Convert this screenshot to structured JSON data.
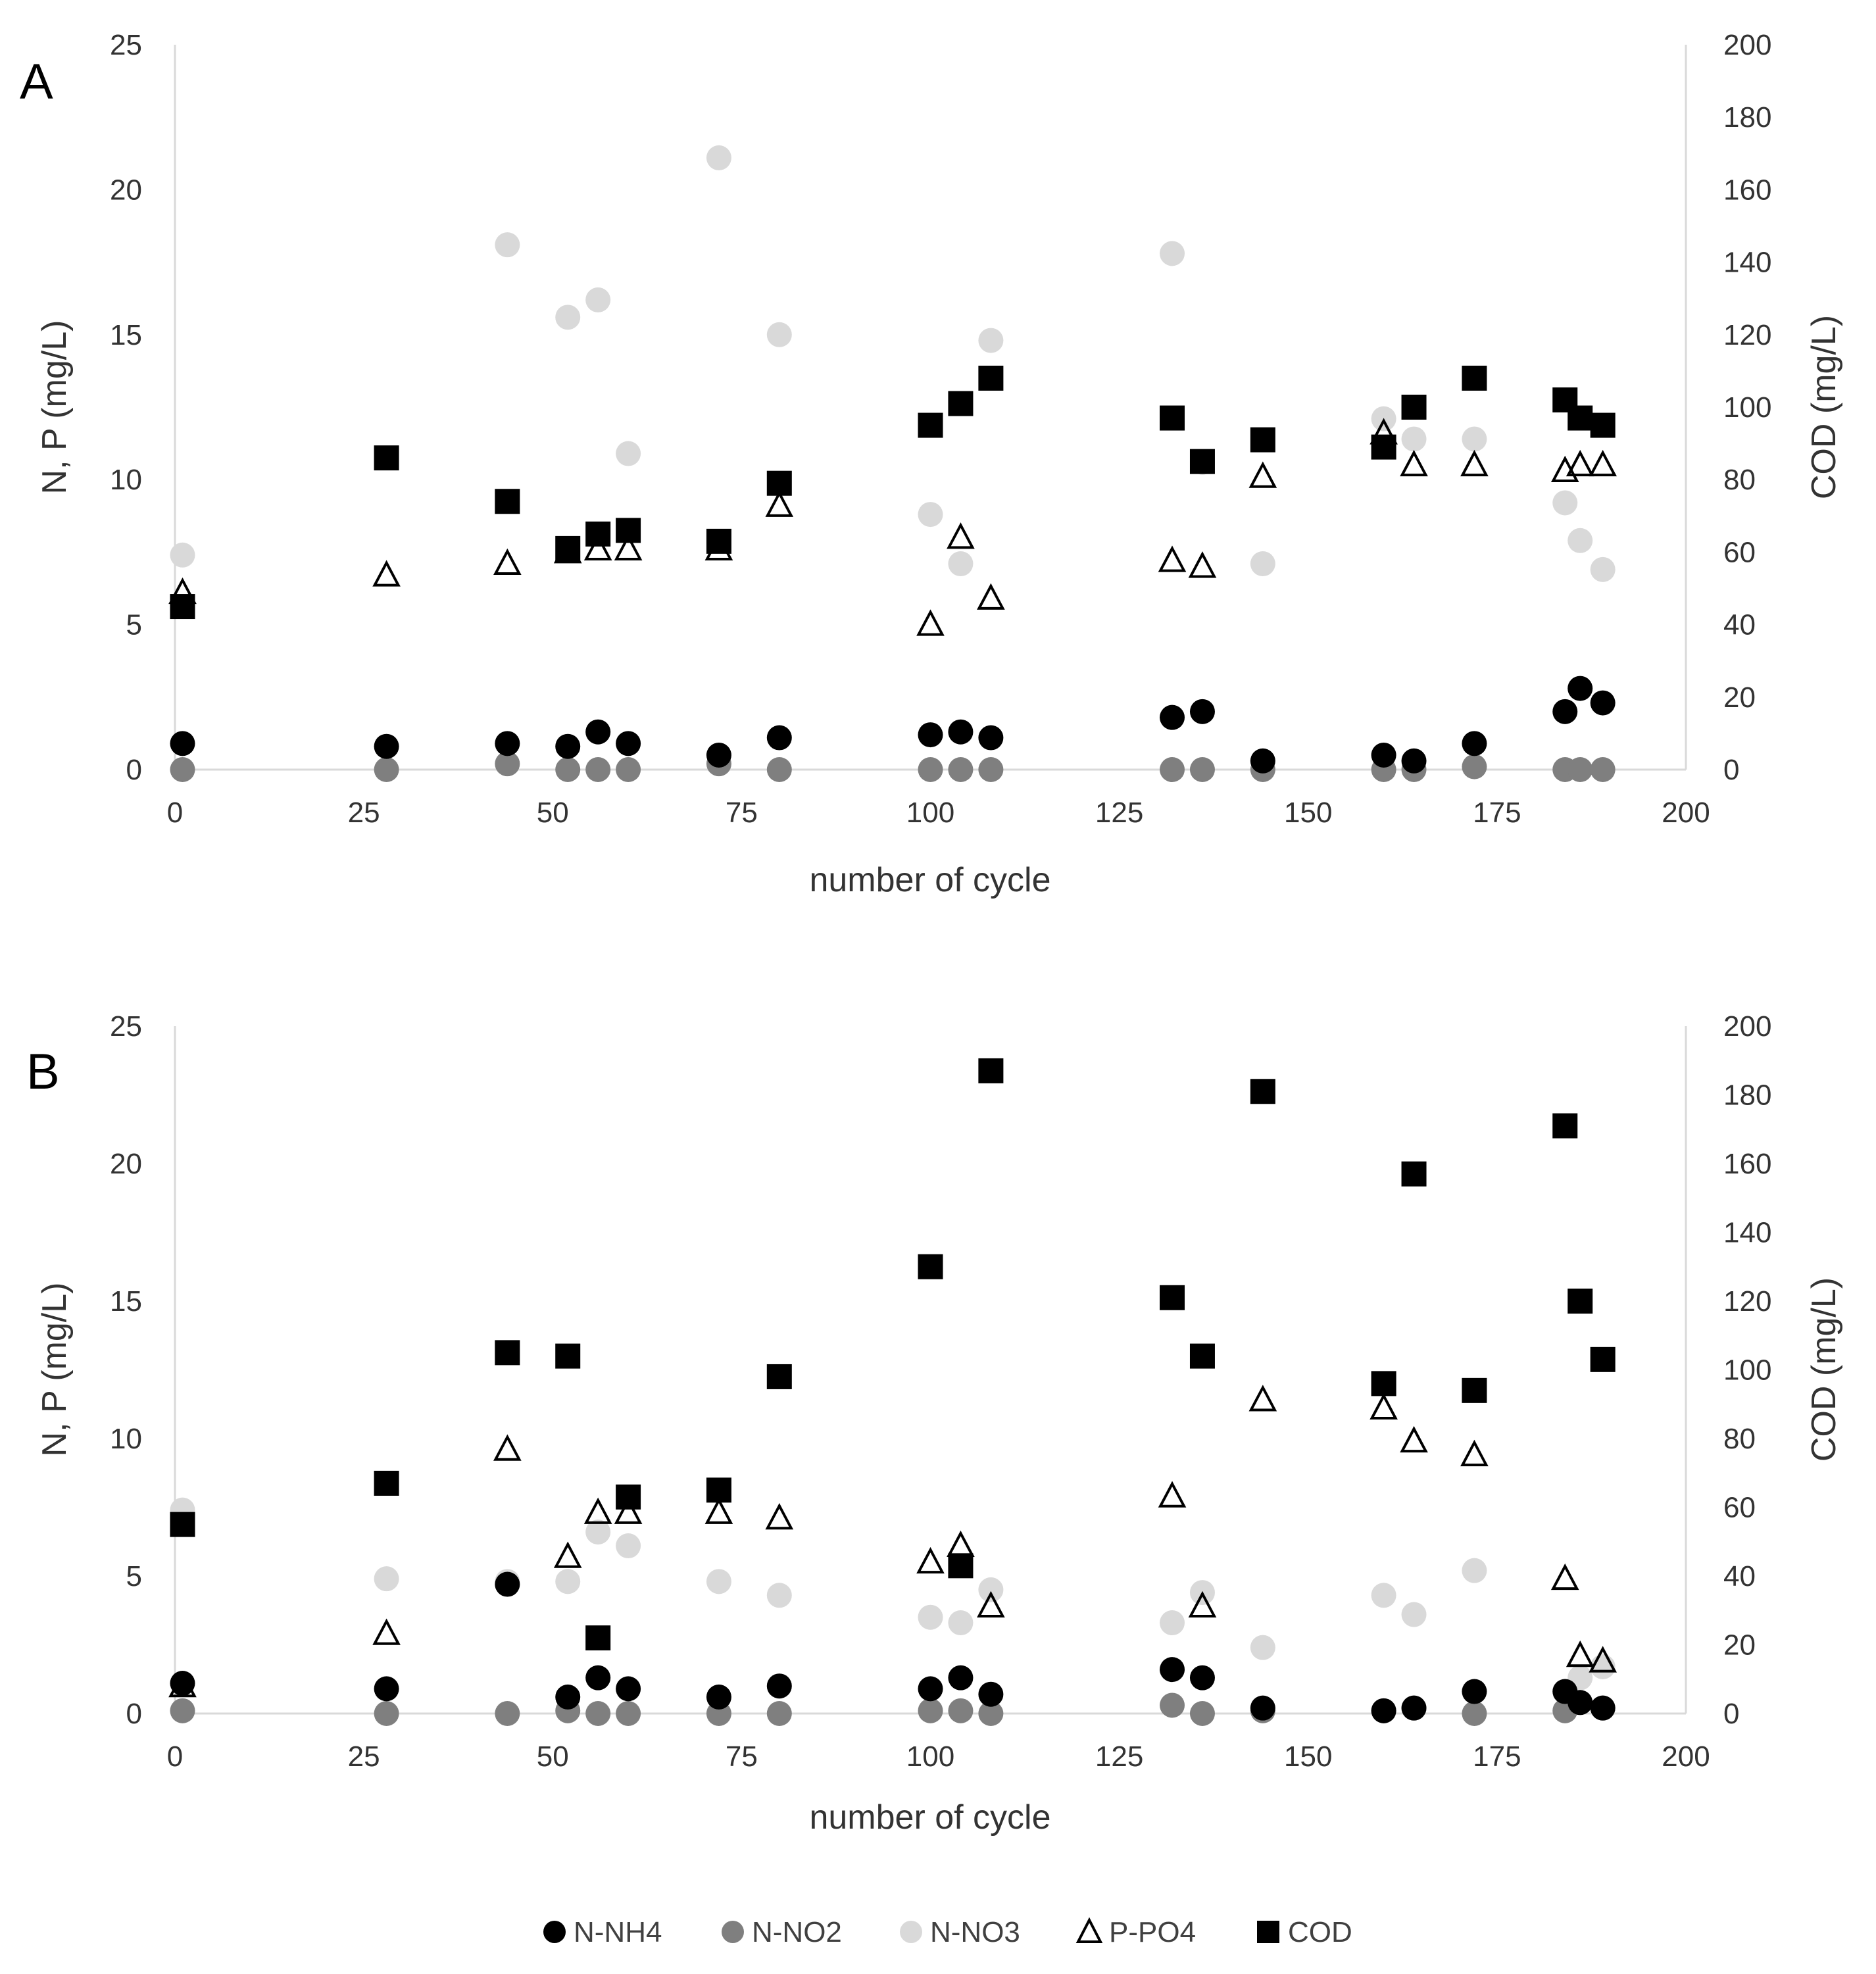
{
  "colors": {
    "N-NH4": "#000000",
    "N-NO2": "#7f7f7f",
    "N-NO3": "#d9d9d9",
    "P-PO4": "#000000",
    "COD": "#000000",
    "axis": "#d9d9d9"
  },
  "legend": {
    "placement": "bottom-center",
    "items": [
      {
        "label": "N-NH4",
        "marker": "circle"
      },
      {
        "label": "N-NO2",
        "marker": "circle"
      },
      {
        "label": "N-NO3",
        "marker": "circle"
      },
      {
        "label": "P-PO4",
        "marker": "open-triangle"
      },
      {
        "label": "COD",
        "marker": "square"
      }
    ]
  },
  "chart_data": [
    {
      "type": "scatter",
      "panel_label": "A",
      "xlabel": "number of cycle",
      "ylabel": "N, P (mg/L)",
      "y2label": "COD (mg/L)",
      "xlim": [
        0,
        200
      ],
      "ylim": [
        0,
        25
      ],
      "y2lim": [
        0,
        200
      ],
      "xticks": [
        0,
        25,
        50,
        75,
        100,
        125,
        150,
        175,
        200
      ],
      "yticks": [
        0,
        5,
        10,
        15,
        20,
        25
      ],
      "y2ticks": [
        0,
        20,
        40,
        60,
        80,
        100,
        120,
        140,
        160,
        180,
        200
      ],
      "grid": false,
      "series": [
        {
          "name": "N-NO3",
          "axis": "left",
          "marker": "circle",
          "points": [
            [
              1,
              7.4
            ],
            [
              44,
              18.1
            ],
            [
              52,
              15.6
            ],
            [
              56,
              16.2
            ],
            [
              60,
              10.9
            ],
            [
              72,
              21.1
            ],
            [
              80,
              15.0
            ],
            [
              100,
              8.8
            ],
            [
              104,
              7.1
            ],
            [
              108,
              14.8
            ],
            [
              132,
              17.8
            ],
            [
              136,
              10.6
            ],
            [
              144,
              7.1
            ],
            [
              160,
              12.1
            ],
            [
              164,
              11.4
            ],
            [
              172,
              11.4
            ],
            [
              184,
              9.2
            ],
            [
              186,
              7.9
            ],
            [
              189,
              6.9
            ]
          ]
        },
        {
          "name": "N-NO2",
          "axis": "left",
          "marker": "circle",
          "points": [
            [
              1,
              0
            ],
            [
              28,
              0
            ],
            [
              44,
              0.2
            ],
            [
              52,
              0
            ],
            [
              56,
              0
            ],
            [
              60,
              0
            ],
            [
              72,
              0.2
            ],
            [
              80,
              0
            ],
            [
              100,
              0
            ],
            [
              104,
              0
            ],
            [
              108,
              0
            ],
            [
              132,
              0
            ],
            [
              136,
              0
            ],
            [
              144,
              0
            ],
            [
              160,
              0
            ],
            [
              164,
              0
            ],
            [
              172,
              0.1
            ],
            [
              184,
              0
            ],
            [
              186,
              0
            ],
            [
              189,
              0
            ]
          ]
        },
        {
          "name": "N-NH4",
          "axis": "left",
          "marker": "circle",
          "points": [
            [
              1,
              0.9
            ],
            [
              28,
              0.8
            ],
            [
              44,
              0.9
            ],
            [
              52,
              0.8
            ],
            [
              56,
              1.3
            ],
            [
              60,
              0.9
            ],
            [
              72,
              0.5
            ],
            [
              80,
              1.1
            ],
            [
              100,
              1.2
            ],
            [
              104,
              1.3
            ],
            [
              108,
              1.1
            ],
            [
              132,
              1.8
            ],
            [
              136,
              2.0
            ],
            [
              144,
              0.3
            ],
            [
              160,
              0.5
            ],
            [
              164,
              0.3
            ],
            [
              172,
              0.9
            ],
            [
              184,
              2.0
            ],
            [
              186,
              2.8
            ],
            [
              189,
              2.3
            ]
          ]
        },
        {
          "name": "P-PO4",
          "axis": "left",
          "marker": "open-triangle",
          "points": [
            [
              1,
              6.1
            ],
            [
              28,
              6.7
            ],
            [
              44,
              7.1
            ],
            [
              52,
              7.5
            ],
            [
              56,
              7.6
            ],
            [
              60,
              7.6
            ],
            [
              72,
              7.6
            ],
            [
              80,
              9.1
            ],
            [
              100,
              5.0
            ],
            [
              104,
              8.0
            ],
            [
              108,
              5.9
            ],
            [
              132,
              7.2
            ],
            [
              136,
              7.0
            ],
            [
              144,
              10.1
            ],
            [
              160,
              11.6
            ],
            [
              164,
              10.5
            ],
            [
              172,
              10.5
            ],
            [
              184,
              10.3
            ],
            [
              186,
              10.5
            ],
            [
              189,
              10.5
            ]
          ]
        },
        {
          "name": "COD",
          "axis": "right",
          "marker": "square",
          "points": [
            [
              1,
              45
            ],
            [
              28,
              86
            ],
            [
              44,
              74
            ],
            [
              52,
              61
            ],
            [
              56,
              65
            ],
            [
              60,
              66
            ],
            [
              72,
              63
            ],
            [
              80,
              79
            ],
            [
              100,
              95
            ],
            [
              104,
              101
            ],
            [
              108,
              108
            ],
            [
              132,
              97
            ],
            [
              136,
              85
            ],
            [
              144,
              91
            ],
            [
              160,
              89
            ],
            [
              164,
              100
            ],
            [
              172,
              108
            ],
            [
              184,
              102
            ],
            [
              186,
              97
            ],
            [
              189,
              95
            ]
          ]
        }
      ]
    },
    {
      "type": "scatter",
      "panel_label": "B",
      "xlabel": "number of cycle",
      "ylabel": "N, P (mg/L)",
      "y2label": "COD (mg/L)",
      "xlim": [
        0,
        200
      ],
      "ylim": [
        0,
        25
      ],
      "y2lim": [
        0,
        200
      ],
      "xticks": [
        0,
        25,
        50,
        75,
        100,
        125,
        150,
        175,
        200
      ],
      "yticks": [
        0,
        5,
        10,
        15,
        20,
        25
      ],
      "y2ticks": [
        0,
        20,
        40,
        60,
        80,
        100,
        120,
        140,
        160,
        180,
        200
      ],
      "grid": false,
      "series": [
        {
          "name": "N-NO3",
          "axis": "left",
          "marker": "circle",
          "points": [
            [
              1,
              7.4
            ],
            [
              28,
              4.9
            ],
            [
              44,
              4.8
            ],
            [
              52,
              4.8
            ],
            [
              56,
              6.6
            ],
            [
              60,
              6.1
            ],
            [
              72,
              4.8
            ],
            [
              80,
              4.3
            ],
            [
              100,
              3.5
            ],
            [
              104,
              3.3
            ],
            [
              108,
              4.5
            ],
            [
              132,
              3.3
            ],
            [
              136,
              4.4
            ],
            [
              144,
              2.4
            ],
            [
              160,
              4.3
            ],
            [
              164,
              3.6
            ],
            [
              172,
              5.2
            ],
            [
              184,
              0.8
            ],
            [
              186,
              1.3
            ],
            [
              189,
              1.7
            ]
          ]
        },
        {
          "name": "N-NO2",
          "axis": "left",
          "marker": "circle",
          "points": [
            [
              1,
              0.1
            ],
            [
              28,
              0
            ],
            [
              44,
              0
            ],
            [
              52,
              0.1
            ],
            [
              56,
              0
            ],
            [
              60,
              0
            ],
            [
              72,
              0
            ],
            [
              80,
              0
            ],
            [
              100,
              0.1
            ],
            [
              104,
              0.1
            ],
            [
              108,
              0
            ],
            [
              132,
              0.3
            ],
            [
              136,
              0
            ],
            [
              144,
              0.1
            ],
            [
              160,
              0.1
            ],
            [
              164,
              0.2
            ],
            [
              172,
              0
            ],
            [
              184,
              0.1
            ],
            [
              186,
              0.4
            ],
            [
              189,
              0.2
            ]
          ]
        },
        {
          "name": "N-NH4",
          "axis": "left",
          "marker": "circle",
          "points": [
            [
              1,
              1.1
            ],
            [
              28,
              0.9
            ],
            [
              44,
              4.7
            ],
            [
              52,
              0.6
            ],
            [
              56,
              1.3
            ],
            [
              60,
              0.9
            ],
            [
              72,
              0.6
            ],
            [
              80,
              1.0
            ],
            [
              100,
              0.9
            ],
            [
              104,
              1.3
            ],
            [
              108,
              0.7
            ],
            [
              132,
              1.6
            ],
            [
              136,
              1.3
            ],
            [
              144,
              0.2
            ],
            [
              160,
              0.1
            ],
            [
              164,
              0.2
            ],
            [
              172,
              0.8
            ],
            [
              184,
              0.8
            ],
            [
              186,
              0.4
            ],
            [
              189,
              0.2
            ]
          ]
        },
        {
          "name": "P-PO4",
          "axis": "left",
          "marker": "open-triangle",
          "points": [
            [
              1,
              1.0
            ],
            [
              28,
              2.9
            ],
            [
              44,
              9.6
            ],
            [
              52,
              5.7
            ],
            [
              56,
              7.3
            ],
            [
              60,
              7.3
            ],
            [
              72,
              7.3
            ],
            [
              80,
              7.1
            ],
            [
              100,
              5.5
            ],
            [
              104,
              6.1
            ],
            [
              108,
              3.9
            ],
            [
              132,
              7.9
            ],
            [
              136,
              3.9
            ],
            [
              144,
              11.4
            ],
            [
              160,
              11.1
            ],
            [
              164,
              9.9
            ],
            [
              172,
              9.4
            ],
            [
              184,
              4.9
            ],
            [
              186,
              2.1
            ],
            [
              189,
              1.9
            ]
          ]
        },
        {
          "name": "COD",
          "axis": "right",
          "marker": "square",
          "points": [
            [
              1,
              55
            ],
            [
              28,
              67
            ],
            [
              44,
              105
            ],
            [
              52,
              104
            ],
            [
              56,
              22
            ],
            [
              60,
              63
            ],
            [
              72,
              65
            ],
            [
              80,
              98
            ],
            [
              100,
              130
            ],
            [
              104,
              43
            ],
            [
              108,
              187
            ],
            [
              132,
              121
            ],
            [
              136,
              104
            ],
            [
              144,
              181
            ],
            [
              160,
              96
            ],
            [
              164,
              157
            ],
            [
              172,
              94
            ],
            [
              184,
              171
            ],
            [
              186,
              120
            ],
            [
              189,
              103
            ]
          ]
        }
      ]
    }
  ]
}
